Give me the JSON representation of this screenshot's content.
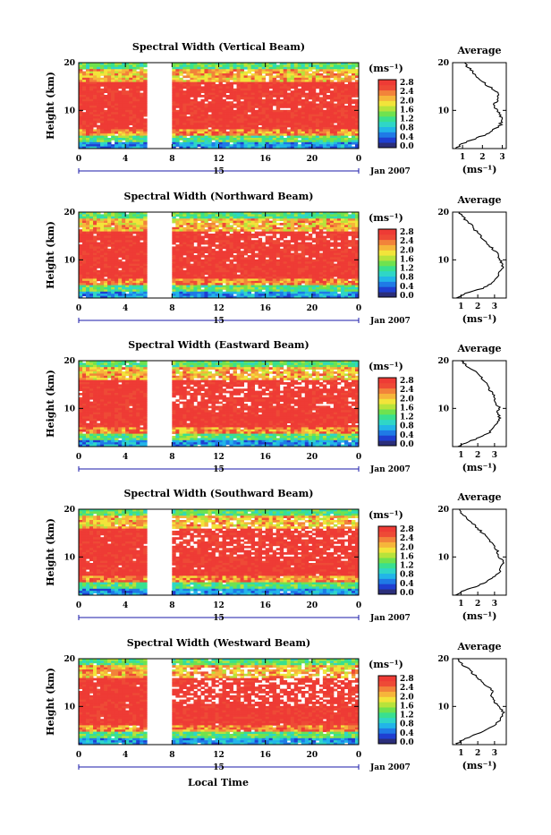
{
  "figure": {
    "date_label": "Jan 2007",
    "day_label": "15",
    "xlabel": "Local Time",
    "ylabel": "Height (km)",
    "unit_label": "(ms⁻¹)",
    "avg_title": "Average",
    "avg_xlabel": "(ms⁻¹)"
  },
  "colors": {
    "colormap": [
      "#2b2e7a",
      "#1f3fd1",
      "#1f7ae6",
      "#22b5e8",
      "#2fd6c7",
      "#39e08f",
      "#6fe24f",
      "#b7e33b",
      "#f2e43a",
      "#f6b53b",
      "#f2833a",
      "#ee4a36",
      "#ee3b35"
    ],
    "avg_line": "#000000",
    "axis": "#000000",
    "date_rule": "#1a1aa8"
  },
  "chart_data": [
    {
      "type": "heatmap",
      "title": "Spectral Width (Vertical Beam)",
      "x_ticks": [
        "0",
        "4",
        "8",
        "12",
        "16",
        "20",
        "0"
      ],
      "x_range": [
        0,
        24
      ],
      "data_gap": [
        5.8,
        8.0
      ],
      "y_ticks": [
        "20",
        "10"
      ],
      "y_range": [
        2,
        20
      ],
      "colorbar_ticks": [
        "2.8",
        "2.4",
        "2.0",
        "1.6",
        "1.2",
        "0.8",
        "0.4",
        "0.0"
      ],
      "average": {
        "x_ticks": [
          "1",
          "2",
          "3"
        ],
        "x_range": [
          0.5,
          3.2
        ],
        "y_ticks": [
          "20",
          "10"
        ],
        "height": [
          2,
          3,
          4,
          5,
          6,
          7,
          8,
          9,
          10,
          11,
          12,
          13,
          14,
          15,
          16,
          17,
          18,
          19,
          20
        ],
        "value": [
          0.7,
          1.0,
          1.6,
          2.2,
          2.6,
          2.9,
          3.0,
          2.9,
          2.7,
          2.6,
          2.7,
          2.8,
          2.7,
          2.3,
          2.0,
          1.7,
          1.5,
          1.3,
          1.1
        ]
      }
    },
    {
      "type": "heatmap",
      "title": "Spectral Width (Northward Beam)",
      "x_ticks": [
        "0",
        "4",
        "8",
        "12",
        "16",
        "20",
        "0"
      ],
      "x_range": [
        0,
        24
      ],
      "data_gap": [
        5.8,
        8.0
      ],
      "y_ticks": [
        "20",
        "10"
      ],
      "y_range": [
        2,
        20
      ],
      "colorbar_ticks": [
        "2.8",
        "2.4",
        "2.0",
        "1.6",
        "1.2",
        "0.8",
        "0.4",
        "0.0"
      ],
      "average": {
        "x_ticks": [
          "1",
          "2",
          "3"
        ],
        "x_range": [
          0.5,
          3.7
        ],
        "y_ticks": [
          "20",
          "10"
        ],
        "height": [
          2,
          3,
          4,
          5,
          6,
          7,
          8,
          9,
          10,
          11,
          12,
          13,
          14,
          15,
          16,
          17,
          18,
          19,
          20
        ],
        "value": [
          0.7,
          1.3,
          2.3,
          2.8,
          3.1,
          3.3,
          3.4,
          3.5,
          3.3,
          3.2,
          3.0,
          2.7,
          2.4,
          2.2,
          1.9,
          1.7,
          1.4,
          1.1,
          0.9
        ]
      }
    },
    {
      "type": "heatmap",
      "title": "Spectral Width (Eastward Beam)",
      "x_ticks": [
        "0",
        "4",
        "8",
        "12",
        "16",
        "20",
        "0"
      ],
      "x_range": [
        0,
        24
      ],
      "data_gap": [
        5.8,
        8.0
      ],
      "y_ticks": [
        "20",
        "10"
      ],
      "y_range": [
        2,
        20
      ],
      "colorbar_ticks": [
        "2.8",
        "2.4",
        "2.0",
        "1.6",
        "1.2",
        "0.8",
        "0.4",
        "0.0"
      ],
      "average": {
        "x_ticks": [
          "1",
          "2",
          "3"
        ],
        "x_range": [
          0.5,
          3.7
        ],
        "y_ticks": [
          "20",
          "10"
        ],
        "height": [
          2,
          3,
          4,
          5,
          6,
          7,
          8,
          9,
          10,
          11,
          12,
          13,
          14,
          15,
          16,
          17,
          18,
          19,
          20
        ],
        "value": [
          0.8,
          1.4,
          2.2,
          2.7,
          3.0,
          3.2,
          3.3,
          3.2,
          3.3,
          3.1,
          3.0,
          2.9,
          2.7,
          2.6,
          2.3,
          2.1,
          1.7,
          1.3,
          1.0
        ]
      }
    },
    {
      "type": "heatmap",
      "title": "Spectral Width (Southward Beam)",
      "x_ticks": [
        "0",
        "4",
        "8",
        "12",
        "16",
        "20",
        "0"
      ],
      "x_range": [
        0,
        24
      ],
      "data_gap": [
        5.8,
        8.0
      ],
      "y_ticks": [
        "20",
        "10"
      ],
      "y_range": [
        2,
        20
      ],
      "colorbar_ticks": [
        "2.8",
        "2.4",
        "2.0",
        "1.6",
        "1.2",
        "0.8",
        "0.4",
        "0.0"
      ],
      "average": {
        "x_ticks": [
          "1",
          "2",
          "3"
        ],
        "x_range": [
          0.5,
          3.7
        ],
        "y_ticks": [
          "20",
          "10"
        ],
        "height": [
          2,
          3,
          4,
          5,
          6,
          7,
          8,
          9,
          10,
          11,
          12,
          13,
          14,
          15,
          16,
          17,
          18,
          19,
          20
        ],
        "value": [
          0.7,
          1.2,
          2.0,
          2.6,
          3.0,
          3.3,
          3.4,
          3.5,
          3.3,
          3.2,
          3.0,
          2.8,
          2.6,
          2.3,
          2.0,
          1.7,
          1.4,
          1.1,
          0.9
        ]
      }
    },
    {
      "type": "heatmap",
      "title": "Spectral Width (Westward Beam)",
      "x_ticks": [
        "0",
        "4",
        "8",
        "12",
        "16",
        "20",
        "0"
      ],
      "x_range": [
        0,
        24
      ],
      "data_gap": [
        5.8,
        8.0
      ],
      "y_ticks": [
        "20",
        "10"
      ],
      "y_range": [
        2,
        20
      ],
      "colorbar_ticks": [
        "2.8",
        "2.4",
        "2.0",
        "1.6",
        "1.2",
        "0.8",
        "0.4",
        "0.0"
      ],
      "average": {
        "x_ticks": [
          "1",
          "2",
          "3"
        ],
        "x_range": [
          0.5,
          3.7
        ],
        "y_ticks": [
          "20",
          "10"
        ],
        "height": [
          2,
          3,
          4,
          5,
          6,
          7,
          8,
          9,
          10,
          11,
          12,
          13,
          14,
          15,
          16,
          17,
          18,
          19,
          20
        ],
        "value": [
          0.7,
          1.1,
          1.8,
          2.5,
          3.0,
          3.3,
          3.5,
          3.5,
          3.3,
          3.0,
          2.8,
          2.9,
          2.7,
          2.3,
          2.0,
          1.7,
          1.4,
          1.0,
          0.8
        ]
      }
    }
  ]
}
